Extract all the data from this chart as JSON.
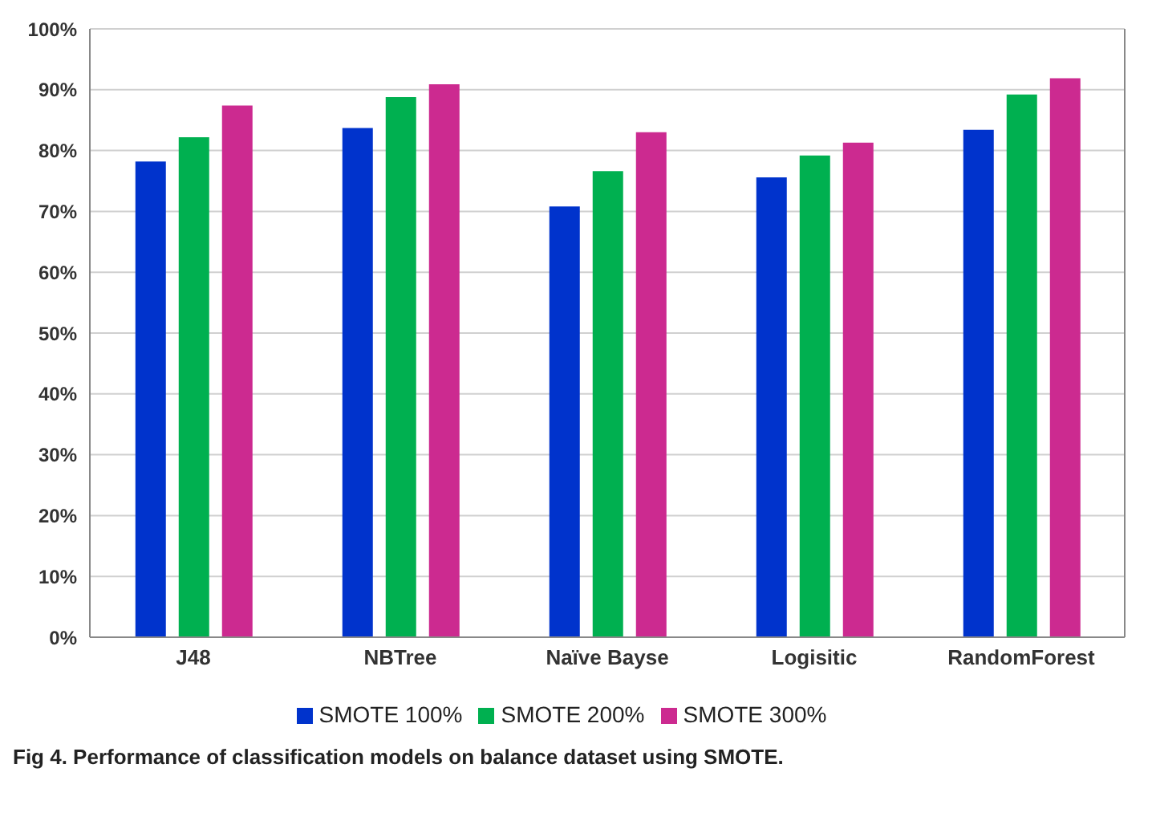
{
  "chart_data": {
    "type": "bar",
    "categories": [
      "J48",
      "NBTree",
      "Naïve Bayse",
      "Logisitic",
      "RandomForest"
    ],
    "series": [
      {
        "name": "SMOTE 100%",
        "color": "#0033cc",
        "values": [
          78.2,
          83.7,
          70.8,
          75.6,
          83.4
        ]
      },
      {
        "name": "SMOTE 200%",
        "color": "#00b050",
        "values": [
          82.2,
          88.8,
          76.6,
          79.2,
          89.2
        ]
      },
      {
        "name": "SMOTE 300%",
        "color": "#cc2a90",
        "values": [
          87.4,
          90.9,
          83.0,
          81.3,
          91.9
        ]
      }
    ],
    "ylim": [
      0,
      100
    ],
    "yticks": [
      {
        "value": 0,
        "label": "0%"
      },
      {
        "value": 10,
        "label": "10%"
      },
      {
        "value": 20,
        "label": "20%"
      },
      {
        "value": 30,
        "label": "30%"
      },
      {
        "value": 40,
        "label": "40%"
      },
      {
        "value": 50,
        "label": "50%"
      },
      {
        "value": 60,
        "label": "60%"
      },
      {
        "value": 70,
        "label": "70%"
      },
      {
        "value": 80,
        "label": "80%"
      },
      {
        "value": 90,
        "label": "90%"
      },
      {
        "value": 100,
        "label": "100%"
      }
    ],
    "grid": "y",
    "legend": "bottom",
    "annotations": [
      "Fig 4. Performance of classification models on balance dataset using SMOTE."
    ]
  }
}
